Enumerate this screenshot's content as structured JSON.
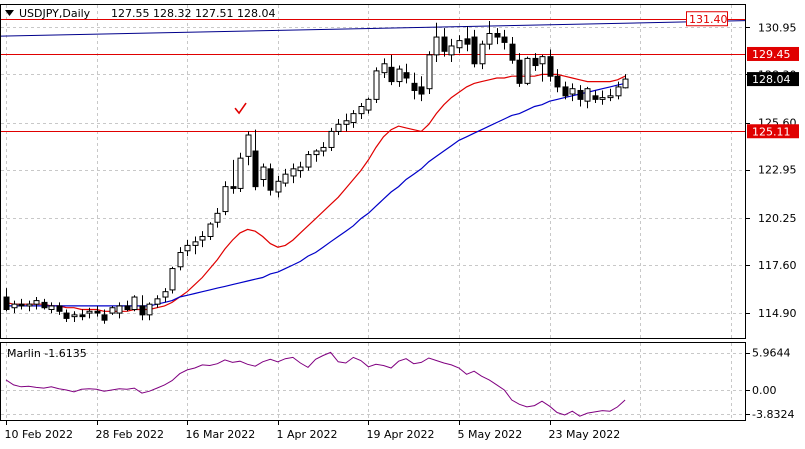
{
  "chart_data": [
    {
      "type": "candlestick",
      "symbol_label": "USDJPY,Daily",
      "ohlc_label": "127.55 128.32 127.51 128.04",
      "y_ticks": [
        "130.95",
        "128.30",
        "125.60",
        "122.95",
        "120.25",
        "117.60",
        "114.90"
      ],
      "y_tick_values": [
        130.95,
        128.3,
        125.6,
        122.95,
        120.25,
        117.6,
        114.9
      ],
      "ylim": [
        113.5,
        132.2
      ],
      "x_tick_labels": [
        "10 Feb 2022",
        "28 Feb 2022",
        "16 Mar 2022",
        "1 Apr 2022",
        "19 Apr 2022",
        "5 May 2022",
        "23 May 2022"
      ],
      "x_tick_indices": [
        0,
        12,
        24,
        36,
        48,
        60,
        72
      ],
      "grid": true,
      "horizontal_levels": [
        {
          "label": "131.40",
          "value": 131.4,
          "color": "#e00000",
          "style": "box"
        },
        {
          "label": "129.45",
          "value": 129.45,
          "color": "#e00000",
          "style": "filled"
        },
        {
          "label": "125.11",
          "value": 125.11,
          "color": "#e00000",
          "style": "filled"
        }
      ],
      "current_price": {
        "label": "128.04",
        "value": 128.04
      },
      "marker_check": {
        "index": 31,
        "value": 126.3,
        "color": "#e00000"
      },
      "candles": [
        [
          115.8,
          116.3,
          115.0,
          115.1
        ],
        [
          115.2,
          115.6,
          114.9,
          115.4
        ],
        [
          115.4,
          115.7,
          115.1,
          115.3
        ],
        [
          115.3,
          115.6,
          115.0,
          115.4
        ],
        [
          115.4,
          115.8,
          115.1,
          115.6
        ],
        [
          115.5,
          115.7,
          115.1,
          115.2
        ],
        [
          115.1,
          115.5,
          114.9,
          115.3
        ],
        [
          115.3,
          115.5,
          114.8,
          115.0
        ],
        [
          114.9,
          115.1,
          114.4,
          114.6
        ],
        [
          114.7,
          115.0,
          114.4,
          114.8
        ],
        [
          114.8,
          115.1,
          114.5,
          114.7
        ],
        [
          114.9,
          115.2,
          114.6,
          115.0
        ],
        [
          115.0,
          115.3,
          114.7,
          114.9
        ],
        [
          114.8,
          115.1,
          114.3,
          114.5
        ],
        [
          114.9,
          115.3,
          114.8,
          115.2
        ],
        [
          114.9,
          115.5,
          114.6,
          115.3
        ],
        [
          115.3,
          115.6,
          115.0,
          115.1
        ],
        [
          115.1,
          115.9,
          115.0,
          115.8
        ],
        [
          115.3,
          115.9,
          114.5,
          114.8
        ],
        [
          114.8,
          115.5,
          114.5,
          115.4
        ],
        [
          115.4,
          115.9,
          115.2,
          115.7
        ],
        [
          115.8,
          116.3,
          115.5,
          116.1
        ],
        [
          116.2,
          117.5,
          116.0,
          117.4
        ],
        [
          117.5,
          118.6,
          117.3,
          118.3
        ],
        [
          118.4,
          119.0,
          118.1,
          118.7
        ],
        [
          118.7,
          119.2,
          118.2,
          118.9
        ],
        [
          119.0,
          119.5,
          118.6,
          119.2
        ],
        [
          119.2,
          120.0,
          119.0,
          119.9
        ],
        [
          120.0,
          120.8,
          119.7,
          120.5
        ],
        [
          120.6,
          122.3,
          120.4,
          122.0
        ],
        [
          122.0,
          123.5,
          121.6,
          121.9
        ],
        [
          121.9,
          123.9,
          121.7,
          123.6
        ],
        [
          123.7,
          125.1,
          123.2,
          124.9
        ],
        [
          124.0,
          125.2,
          121.8,
          122.0
        ],
        [
          122.4,
          123.3,
          122.0,
          123.1
        ],
        [
          123.0,
          123.3,
          121.5,
          121.8
        ],
        [
          121.7,
          122.6,
          121.4,
          122.3
        ],
        [
          122.2,
          123.0,
          122.0,
          122.7
        ],
        [
          122.6,
          123.3,
          122.2,
          123.0
        ],
        [
          122.9,
          123.4,
          122.5,
          123.1
        ],
        [
          123.1,
          124.0,
          122.9,
          123.8
        ],
        [
          123.8,
          124.1,
          123.4,
          124.0
        ],
        [
          124.0,
          124.5,
          123.7,
          124.2
        ],
        [
          124.2,
          125.3,
          124.0,
          125.1
        ],
        [
          125.1,
          125.8,
          124.9,
          125.5
        ],
        [
          125.5,
          126.1,
          125.1,
          125.7
        ],
        [
          125.6,
          126.3,
          125.3,
          126.1
        ],
        [
          126.1,
          126.7,
          125.8,
          126.5
        ],
        [
          126.3,
          127.0,
          126.1,
          126.9
        ],
        [
          126.9,
          128.7,
          126.7,
          128.5
        ],
        [
          128.4,
          129.2,
          128.1,
          128.9
        ],
        [
          128.7,
          129.4,
          127.7,
          127.9
        ],
        [
          127.9,
          128.8,
          127.6,
          128.6
        ],
        [
          128.4,
          128.9,
          127.8,
          128.1
        ],
        [
          127.8,
          128.4,
          126.9,
          127.4
        ],
        [
          127.6,
          128.2,
          126.8,
          127.2
        ],
        [
          127.5,
          129.6,
          127.2,
          129.4
        ],
        [
          129.4,
          131.2,
          129.0,
          130.4
        ],
        [
          130.4,
          130.9,
          129.3,
          129.6
        ],
        [
          129.4,
          130.3,
          129.0,
          129.9
        ],
        [
          129.8,
          130.5,
          129.5,
          130.2
        ],
        [
          130.3,
          131.0,
          129.6,
          130.0
        ],
        [
          130.4,
          130.8,
          128.7,
          128.9
        ],
        [
          128.9,
          130.2,
          128.6,
          130.0
        ],
        [
          130.0,
          131.3,
          129.7,
          130.6
        ],
        [
          130.6,
          130.9,
          130.0,
          130.4
        ],
        [
          130.4,
          130.8,
          129.7,
          130.1
        ],
        [
          130.0,
          130.4,
          128.9,
          129.1
        ],
        [
          129.1,
          129.5,
          127.6,
          127.8
        ],
        [
          127.8,
          129.3,
          127.7,
          129.2
        ],
        [
          129.2,
          129.5,
          128.5,
          128.8
        ],
        [
          128.9,
          129.4,
          127.9,
          129.3
        ],
        [
          129.3,
          129.7,
          127.9,
          128.2
        ],
        [
          128.2,
          128.6,
          127.3,
          127.6
        ],
        [
          127.6,
          127.9,
          126.9,
          127.1
        ],
        [
          127.2,
          127.8,
          126.8,
          127.5
        ],
        [
          127.4,
          127.7,
          126.5,
          126.9
        ],
        [
          126.8,
          127.6,
          126.4,
          127.5
        ],
        [
          127.1,
          127.4,
          126.7,
          126.9
        ],
        [
          126.9,
          127.4,
          126.6,
          127.0
        ],
        [
          127.0,
          127.5,
          126.8,
          127.1
        ],
        [
          127.1,
          127.9,
          126.9,
          127.6
        ],
        [
          127.55,
          128.32,
          127.51,
          128.04
        ]
      ],
      "series": [
        {
          "name": "",
          "color": "#e00000",
          "type": "ma",
          "values": [
            115.5,
            115.4,
            115.4,
            115.4,
            115.4,
            115.4,
            115.3,
            115.3,
            115.2,
            115.2,
            115.1,
            115.1,
            115.1,
            115.0,
            115.0,
            115.0,
            115.0,
            115.1,
            115.1,
            115.1,
            115.2,
            115.3,
            115.5,
            115.8,
            116.1,
            116.5,
            116.9,
            117.4,
            117.9,
            118.5,
            119.0,
            119.4,
            119.6,
            119.5,
            119.2,
            118.8,
            118.6,
            118.7,
            119.0,
            119.4,
            119.8,
            120.2,
            120.6,
            121.0,
            121.4,
            121.9,
            122.4,
            122.9,
            123.5,
            124.2,
            124.8,
            125.2,
            125.4,
            125.3,
            125.2,
            125.1,
            125.5,
            126.1,
            126.6,
            127.0,
            127.3,
            127.6,
            127.8,
            127.9,
            128.0,
            128.1,
            128.1,
            128.2,
            128.2,
            128.2,
            128.2,
            128.3,
            128.3,
            128.3,
            128.2,
            128.1,
            128.0,
            127.9,
            127.9,
            127.9,
            127.9,
            128.0,
            128.2
          ]
        },
        {
          "name": "",
          "color": "#0000c8",
          "type": "ma",
          "values": [
            115.3,
            115.3,
            115.3,
            115.3,
            115.3,
            115.3,
            115.3,
            115.3,
            115.3,
            115.3,
            115.3,
            115.3,
            115.3,
            115.3,
            115.3,
            115.3,
            115.3,
            115.3,
            115.3,
            115.3,
            115.4,
            115.5,
            115.6,
            115.8,
            115.9,
            116.0,
            116.1,
            116.2,
            116.3,
            116.4,
            116.5,
            116.6,
            116.7,
            116.8,
            116.9,
            117.1,
            117.2,
            117.4,
            117.6,
            117.8,
            118.1,
            118.3,
            118.6,
            118.9,
            119.2,
            119.5,
            119.8,
            120.2,
            120.5,
            120.9,
            121.3,
            121.7,
            122.0,
            122.4,
            122.7,
            123.0,
            123.4,
            123.7,
            124.0,
            124.3,
            124.6,
            124.8,
            125.0,
            125.2,
            125.4,
            125.6,
            125.8,
            126.0,
            126.1,
            126.3,
            126.5,
            126.6,
            126.8,
            126.9,
            127.0,
            127.1,
            127.2,
            127.3,
            127.4,
            127.5,
            127.6,
            127.7,
            127.8
          ]
        }
      ]
    },
    {
      "type": "line",
      "indicator_label": "Marlin -1.6135",
      "y_ticks": [
        "5.9644",
        "0.00",
        "-3.8324"
      ],
      "y_tick_values": [
        5.9644,
        0,
        -3.8324
      ],
      "ylim": [
        -4.8,
        7.5
      ],
      "series": [
        {
          "name": "Marlin",
          "color": "#800080",
          "values": [
            1.6,
            0.8,
            0.5,
            0.6,
            0.4,
            0.3,
            0.5,
            0.2,
            0.0,
            -0.3,
            0.1,
            0.2,
            0.1,
            -0.2,
            0.0,
            0.2,
            0.1,
            0.3,
            -0.5,
            -0.2,
            0.3,
            0.8,
            1.5,
            2.6,
            3.2,
            3.5,
            4.0,
            3.9,
            4.2,
            4.8,
            4.4,
            4.6,
            4.1,
            3.8,
            4.5,
            4.9,
            4.5,
            5.0,
            5.2,
            4.3,
            3.6,
            4.9,
            5.5,
            6.0,
            4.5,
            4.3,
            5.2,
            4.7,
            3.7,
            4.1,
            3.9,
            3.5,
            4.6,
            5.0,
            4.2,
            4.4,
            5.1,
            4.7,
            4.3,
            4.0,
            3.5,
            2.5,
            3.0,
            2.2,
            1.6,
            0.8,
            0.0,
            -1.6,
            -2.3,
            -2.7,
            -2.5,
            -1.8,
            -2.6,
            -3.6,
            -4.0,
            -3.4,
            -4.2,
            -3.7,
            -3.5,
            -3.3,
            -3.4,
            -2.7,
            -1.61
          ]
        }
      ]
    }
  ],
  "colors": {
    "bull_fill": "#ffffff",
    "bear_fill": "#000000",
    "grid": "#c8c8c8",
    "frame": "#000000"
  }
}
